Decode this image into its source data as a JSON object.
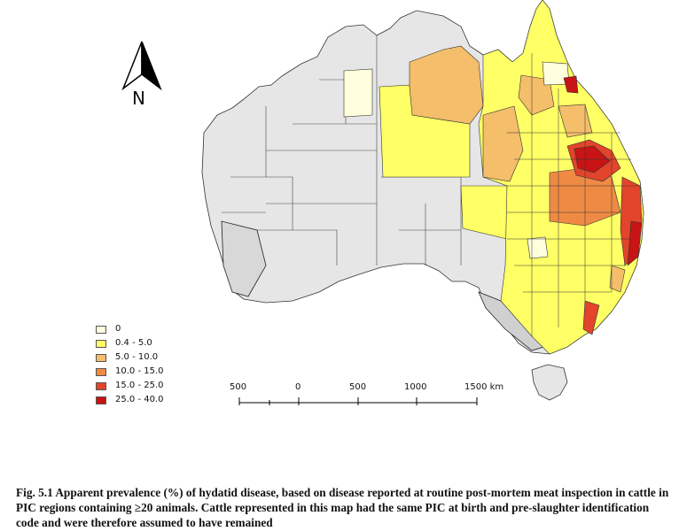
{
  "north_arrow": {
    "label": "N"
  },
  "legend": {
    "items": [
      {
        "label": "0",
        "color": "#ffffdd"
      },
      {
        "label": "0.4 - 5.0",
        "color": "#ffff66"
      },
      {
        "label": "5.0 - 10.0",
        "color": "#f4be6a"
      },
      {
        "label": "10.0 - 15.0",
        "color": "#ef8a45"
      },
      {
        "label": "15.0 - 25.0",
        "color": "#e2452b"
      },
      {
        "label": "25.0 - 40.0",
        "color": "#c81414"
      }
    ]
  },
  "scale_bar": {
    "labels": [
      "500",
      "0",
      "500",
      "1000",
      "1500 km"
    ]
  },
  "caption": {
    "text": "Fig. 5.1 Apparent prevalence (%) of hydatid disease, based on disease reported at routine post-mortem meat inspection in cattle in PIC regions containing ≥20 animals. Cattle represented in this map had the same PIC at birth and pre-slaughter identification code and were therefore assumed to have remained"
  },
  "colors": {
    "no_data": "#e6e6e6",
    "outline": "#333333"
  }
}
